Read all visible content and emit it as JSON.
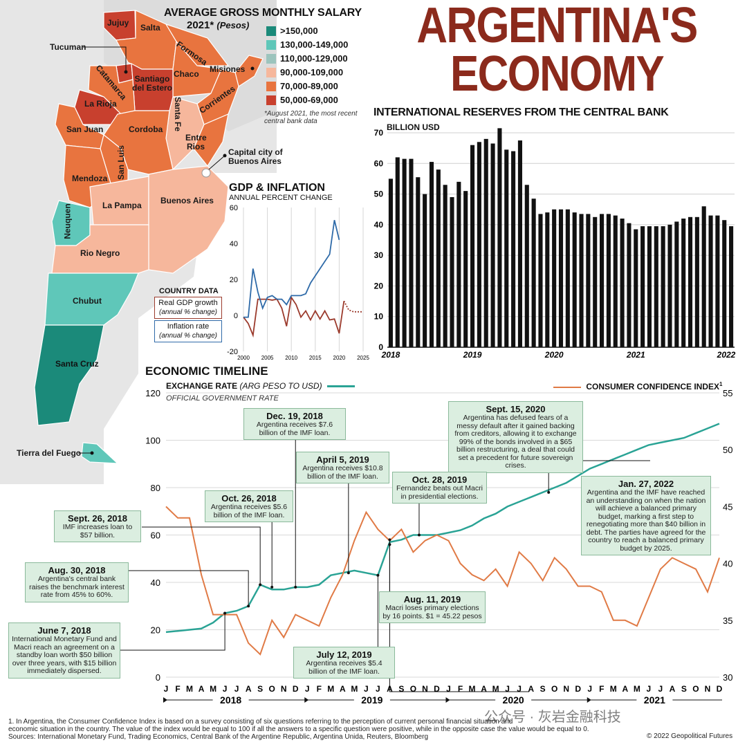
{
  "header": {
    "title_line1": "ARGENTINA'S",
    "title_line2": "ECONOMY"
  },
  "salary_map": {
    "title": "AVERAGE GROSS MONTHLY SALARY",
    "subtitle_year": "2021*",
    "subtitle_unit": "(Pesos)",
    "note": "*August 2021, the most recent central bank data",
    "legend": [
      {
        "label": ">150,000",
        "color": "#1b8a7a"
      },
      {
        "label": "130,000-149,000",
        "color": "#5fc7b9"
      },
      {
        "label": "110,000-129,000",
        "color": "#9cc4bd"
      },
      {
        "label": "90,000-109,000",
        "color": "#f6b79c"
      },
      {
        "label": "70,000-89,000",
        "color": "#e8743f"
      },
      {
        "label": "50,000-69,000",
        "color": "#c8402e"
      }
    ],
    "provinces": [
      "Jujuy",
      "Salta",
      "Formosa",
      "Tucuman",
      "Misiones",
      "Chaco",
      "Catamarca",
      "Santiago del Estero",
      "Corrientes",
      "La Rioja",
      "Santa Fe",
      "San Juan",
      "Cordoba",
      "Entre Rios",
      "San Luis",
      "Mendoza",
      "La Pampa",
      "Buenos Aires",
      "Neuquen",
      "Rio Negro",
      "Chubut",
      "Santa Cruz",
      "Tierra del Fuego"
    ],
    "capital_label": "Capital city of Buenos Aires"
  },
  "reserves_chart": {
    "title": "INTERNATIONAL RESERVES FROM THE CENTRAL BANK",
    "unit": "BILLION USD",
    "y_ticks": [
      "0",
      "10",
      "20",
      "30",
      "40",
      "50",
      "60",
      "70"
    ],
    "x_ticks": [
      "2018",
      "2019",
      "2020",
      "2021",
      "2022"
    ]
  },
  "gdp_chart": {
    "title": "GDP & INFLATION",
    "subtitle": "ANNUAL PERCENT CHANGE",
    "y_ticks": [
      "60",
      "40",
      "20",
      "0",
      "-20"
    ],
    "x_ticks": [
      "2000",
      "2005",
      "2010",
      "2015",
      "2020",
      "2025"
    ],
    "legend_title": "COUNTRY DATA",
    "gdp_label": "Real GDP growth",
    "gdp_sub": "(annual % change)",
    "inf_label": "Inflation rate",
    "inf_sub": "(annual % change)",
    "gdp_color": "#9b3a2c",
    "inf_color": "#2e6aa8"
  },
  "timeline": {
    "title": "ECONOMIC TIMELINE",
    "exchange_label": "EXCHANGE RATE",
    "exchange_unit": "(ARG PESO TO USD)",
    "official_label": "OFFICIAL GOVERNMENT RATE",
    "confidence_label": "CONSUMER CONFIDENCE INDEX",
    "confidence_sup": "1",
    "left_ticks": [
      "120",
      "100",
      "80",
      "60",
      "40",
      "20",
      "0"
    ],
    "right_ticks": [
      "55",
      "50",
      "45",
      "40",
      "35",
      "30"
    ],
    "months": [
      "J",
      "F",
      "M",
      "A",
      "M",
      "J",
      "J",
      "A",
      "S",
      "O",
      "N",
      "D",
      "J",
      "F",
      "M",
      "A",
      "M",
      "J",
      "J",
      "A",
      "S",
      "O",
      "N",
      "D",
      "J",
      "F",
      "M",
      "A",
      "M",
      "J",
      "J",
      "A",
      "S",
      "O",
      "N",
      "D",
      "J",
      "F",
      "M",
      "A",
      "M",
      "J",
      "J",
      "A",
      "S",
      "O",
      "N",
      "D"
    ],
    "years": [
      "2018",
      "2019",
      "2020",
      "2021"
    ],
    "callouts": [
      {
        "title": "Dec. 19, 2018",
        "text": "Argentina receives $7.6 billion of the IMF loan."
      },
      {
        "title": "April 5, 2019",
        "text": "Argentina receives $10.8 billion of the IMF loan."
      },
      {
        "title": "Sept. 15, 2020",
        "text": "Argentina has defused fears of a messy default after it gained backing from creditors, allowing it to exchange 99% of the bonds involved in a $65 billion restructuring, a deal that could set a precedent for future sovereign crises."
      },
      {
        "title": "Oct. 28, 2019",
        "text": "Fernandez beats out Macri in presidential elections."
      },
      {
        "title": "Jan. 27, 2022",
        "text": "Argentina and the IMF have reached an understanding on when the nation will achieve a balanced primary budget, marking a first step to renegotiating more than $40 billion in debt. The parties have agreed for the country to reach a balanced primary budget by 2025."
      },
      {
        "title": "Oct. 26, 2018",
        "text": "Argentina receives $5.6 billion of the IMF loan."
      },
      {
        "title": "Sept. 26, 2018",
        "text": "IMF increases loan to $57 billion."
      },
      {
        "title": "Aug. 30, 2018",
        "text": "Argentina's central bank raises the benchmark interest rate from 45% to 60%."
      },
      {
        "title": "Aug. 11, 2019",
        "text": "Macri loses primary elections by 16 points. $1 = 45.22 pesos"
      },
      {
        "title": "June 7, 2018",
        "text": "International Monetary Fund and Macri reach an agreement on a standby loan worth $50 billion over three years, with $15 billion immediately dispersed."
      },
      {
        "title": "July 12, 2019",
        "text": "Argentina receives $5.4 billion of the IMF loan."
      }
    ],
    "exchange_color": "#2aa395",
    "confidence_color": "#e07a45"
  },
  "footer": {
    "note1": "1. In Argentina, the Consumer Confidence Index is based on a survey consisting of six questions referring to the perception of current personal financial situation and",
    "note2": "economic situation in the country. The value of the index would be equal to 100 if all the answers to a specific question were positive, while in the opposite case the value would be equal to 0.",
    "sources": "Sources: International Monetary Fund, Trading Economics, Central Bank of the Argentine Republic, Argentina Unida, Reuters, Bloomberg",
    "copyright": "© 2022 Geopolitical Futures",
    "watermark": "公众号 · 灰岩金融科技"
  },
  "chart_data": [
    {
      "type": "bar",
      "title": "INTERNATIONAL RESERVES FROM THE CENTRAL BANK",
      "ylabel": "BILLION USD",
      "ylim": [
        0,
        70
      ],
      "x_ticks": [
        "2018",
        "2019",
        "2020",
        "2021",
        "2022"
      ],
      "values": [
        55,
        62,
        61.5,
        61.5,
        55.5,
        50,
        60.5,
        58,
        53,
        49,
        54,
        51,
        66,
        67,
        68,
        66.5,
        71.5,
        64.5,
        64,
        67.5,
        53,
        48.5,
        43.5,
        44,
        45,
        45,
        45,
        44,
        43.5,
        43.5,
        42.5,
        43.5,
        43.5,
        43,
        42,
        40.5,
        38.5,
        39.5,
        39.5,
        39.5,
        39.5,
        40,
        41,
        42,
        42.5,
        42.5,
        46,
        43,
        43,
        41.5,
        39.5
      ]
    },
    {
      "type": "line",
      "title": "GDP & INFLATION",
      "ylabel": "ANNUAL PERCENT CHANGE",
      "ylim": [
        -20,
        60
      ],
      "xlim": [
        2000,
        2025
      ],
      "series": [
        {
          "name": "Real GDP growth",
          "x": [
            2000,
            2001,
            2002,
            2003,
            2004,
            2005,
            2006,
            2007,
            2008,
            2009,
            2010,
            2011,
            2012,
            2013,
            2014,
            2015,
            2016,
            2017,
            2018,
            2019,
            2020,
            2021
          ],
          "values": [
            -1,
            -4.5,
            -11,
            9,
            9,
            9,
            8.5,
            9,
            4,
            -6,
            10,
            6,
            -1,
            2.5,
            -2.5,
            2.5,
            -2,
            2.5,
            -2.5,
            -2,
            -10,
            8
          ]
        },
        {
          "name": "Real GDP growth (forecast)",
          "x": [
            2021,
            2022,
            2023,
            2024,
            2025
          ],
          "values": [
            8,
            3,
            2,
            2,
            2
          ]
        },
        {
          "name": "Inflation rate",
          "x": [
            2000,
            2001,
            2002,
            2003,
            2004,
            2005,
            2006,
            2007,
            2008,
            2009,
            2010,
            2011,
            2012,
            2013,
            2014,
            2015,
            2016,
            2017,
            2018,
            2019,
            2020
          ],
          "values": [
            -1,
            -1,
            26,
            13,
            4,
            10,
            11,
            9,
            9,
            6,
            11,
            11,
            11,
            12,
            18,
            22,
            26,
            30,
            34,
            53,
            42
          ]
        }
      ]
    },
    {
      "type": "line",
      "title": "ECONOMIC TIMELINE",
      "x_categories": [
        "2018-01",
        "2018-02",
        "2018-03",
        "2018-04",
        "2018-05",
        "2018-06",
        "2018-07",
        "2018-08",
        "2018-09",
        "2018-10",
        "2018-11",
        "2018-12",
        "2019-01",
        "2019-02",
        "2019-03",
        "2019-04",
        "2019-05",
        "2019-06",
        "2019-07",
        "2019-08",
        "2019-09",
        "2019-10",
        "2019-11",
        "2019-12",
        "2020-01",
        "2020-02",
        "2020-03",
        "2020-04",
        "2020-05",
        "2020-06",
        "2020-07",
        "2020-08",
        "2020-09",
        "2020-10",
        "2020-11",
        "2020-12",
        "2021-01",
        "2021-02",
        "2021-03",
        "2021-04",
        "2021-05",
        "2021-06",
        "2021-07",
        "2021-08",
        "2021-09",
        "2021-10",
        "2021-11",
        "2021-12"
      ],
      "series": [
        {
          "name": "Exchange rate (ARG peso to USD)",
          "axis": "left",
          "ylim": [
            0,
            120
          ],
          "values": [
            19,
            19.5,
            20,
            20.5,
            23,
            27,
            28,
            30,
            39,
            37,
            37,
            38,
            38,
            39,
            43,
            44,
            45,
            44,
            43,
            57,
            58,
            60,
            60,
            60,
            61,
            62,
            64,
            67,
            69,
            72,
            74,
            76,
            78,
            80,
            82,
            85,
            88,
            90,
            92,
            94,
            96,
            98,
            99,
            100,
            101,
            103,
            105,
            107
          ]
        },
        {
          "name": "Consumer Confidence Index",
          "axis": "right",
          "ylim": [
            30,
            55
          ],
          "values": [
            45,
            44,
            44,
            39,
            35.5,
            35.5,
            35.5,
            33,
            32,
            35,
            33.5,
            35.5,
            35,
            34.5,
            37,
            39,
            42,
            44.5,
            43,
            42,
            43,
            41,
            42,
            42.5,
            42,
            40,
            39,
            38.5,
            39.5,
            38,
            41,
            40,
            38.5,
            40.5,
            39.5,
            38,
            38,
            37.5,
            35,
            35,
            34.5,
            37,
            39.5,
            40.5,
            40,
            39.5,
            37.5,
            40.5
          ]
        }
      ]
    }
  ]
}
